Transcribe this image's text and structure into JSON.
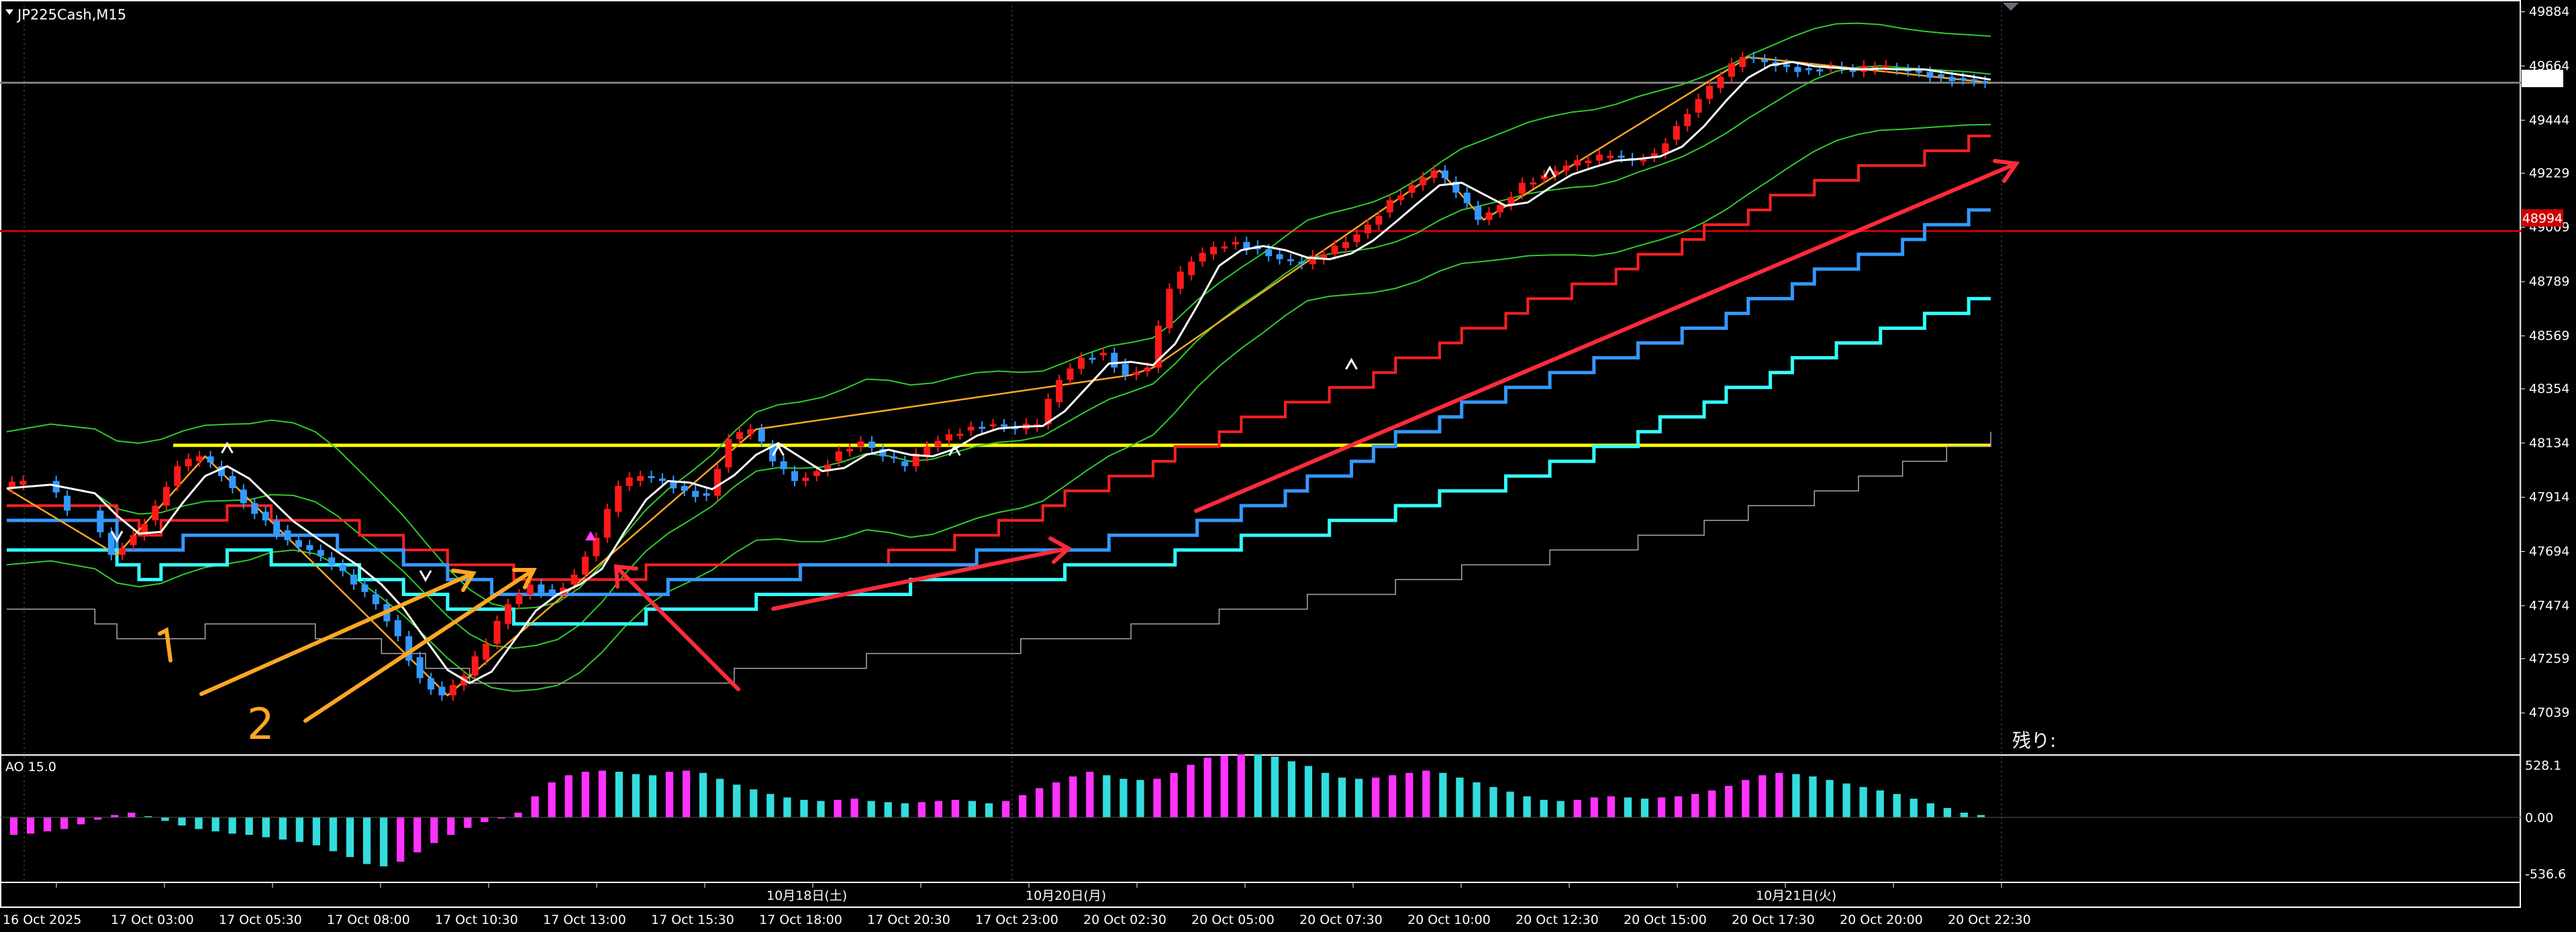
{
  "window": {
    "symbol_title": "JP225Cash,M15",
    "remaining_label": "残り:",
    "current_price": "49596",
    "level_tag": "48994"
  },
  "chart_data": {
    "type": "line",
    "title": "JP225Cash,M15",
    "price_axis": {
      "ticks": [
        49884,
        49664,
        49444,
        49229,
        49009,
        48789,
        48569,
        48354,
        48134,
        47914,
        47694,
        47474,
        47259,
        47039
      ],
      "ylim": [
        46890,
        49910
      ]
    },
    "time_axis": {
      "labels": [
        "16 Oct 2025",
        "17 Oct 03:00",
        "17 Oct 05:30",
        "17 Oct 08:00",
        "17 Oct 10:30",
        "17 Oct 13:00",
        "17 Oct 15:30",
        "17 Oct 18:00",
        "17 Oct 20:30",
        "17 Oct 23:00",
        "20 Oct 02:30",
        "20 Oct 05:00",
        "20 Oct 07:30",
        "20 Oct 10:00",
        "20 Oct 12:30",
        "20 Oct 15:00",
        "20 Oct 17:30",
        "20 Oct 20:00",
        "20 Oct 22:30"
      ],
      "day_separators": [
        "10月18日(土)",
        "10月20日(月)",
        "10月21日(火)"
      ]
    },
    "horizontal_levels": [
      {
        "value": 48125,
        "color": "#ffff00"
      },
      {
        "value": 48994,
        "color": "#cc0000"
      },
      {
        "value": 49596,
        "color": "#808080"
      }
    ],
    "price_series": [
      {
        "t": 0,
        "v": 47950
      },
      {
        "t": 4,
        "v": 47980
      },
      {
        "t": 8,
        "v": 47860
      },
      {
        "t": 10,
        "v": 47680
      },
      {
        "t": 12,
        "v": 47760
      },
      {
        "t": 14,
        "v": 47880
      },
      {
        "t": 16,
        "v": 48040
      },
      {
        "t": 18,
        "v": 48080
      },
      {
        "t": 20,
        "v": 48000
      },
      {
        "t": 22,
        "v": 47890
      },
      {
        "t": 24,
        "v": 47820
      },
      {
        "t": 26,
        "v": 47740
      },
      {
        "t": 28,
        "v": 47700
      },
      {
        "t": 30,
        "v": 47640
      },
      {
        "t": 32,
        "v": 47560
      },
      {
        "t": 34,
        "v": 47480
      },
      {
        "t": 36,
        "v": 47350
      },
      {
        "t": 38,
        "v": 47180
      },
      {
        "t": 40,
        "v": 47110
      },
      {
        "t": 42,
        "v": 47190
      },
      {
        "t": 44,
        "v": 47320
      },
      {
        "t": 46,
        "v": 47480
      },
      {
        "t": 48,
        "v": 47560
      },
      {
        "t": 50,
        "v": 47520
      },
      {
        "t": 52,
        "v": 47600
      },
      {
        "t": 54,
        "v": 47750
      },
      {
        "t": 56,
        "v": 47960
      },
      {
        "t": 58,
        "v": 48000
      },
      {
        "t": 60,
        "v": 47980
      },
      {
        "t": 62,
        "v": 47940
      },
      {
        "t": 64,
        "v": 47920
      },
      {
        "t": 66,
        "v": 48150
      },
      {
        "t": 68,
        "v": 48190
      },
      {
        "t": 70,
        "v": 48060
      },
      {
        "t": 72,
        "v": 47980
      },
      {
        "t": 74,
        "v": 48020
      },
      {
        "t": 76,
        "v": 48100
      },
      {
        "t": 78,
        "v": 48140
      },
      {
        "t": 80,
        "v": 48080
      },
      {
        "t": 82,
        "v": 48040
      },
      {
        "t": 84,
        "v": 48120
      },
      {
        "t": 86,
        "v": 48170
      },
      {
        "t": 88,
        "v": 48200
      },
      {
        "t": 90,
        "v": 48210
      },
      {
        "t": 92,
        "v": 48190
      },
      {
        "t": 94,
        "v": 48210
      },
      {
        "t": 96,
        "v": 48390
      },
      {
        "t": 98,
        "v": 48480
      },
      {
        "t": 100,
        "v": 48500
      },
      {
        "t": 102,
        "v": 48410
      },
      {
        "t": 104,
        "v": 48440
      },
      {
        "t": 106,
        "v": 48760
      },
      {
        "t": 108,
        "v": 48870
      },
      {
        "t": 110,
        "v": 48930
      },
      {
        "t": 112,
        "v": 48950
      },
      {
        "t": 114,
        "v": 48920
      },
      {
        "t": 116,
        "v": 48880
      },
      {
        "t": 118,
        "v": 48860
      },
      {
        "t": 120,
        "v": 48900
      },
      {
        "t": 122,
        "v": 48950
      },
      {
        "t": 124,
        "v": 49020
      },
      {
        "t": 126,
        "v": 49120
      },
      {
        "t": 128,
        "v": 49180
      },
      {
        "t": 130,
        "v": 49240
      },
      {
        "t": 132,
        "v": 49150
      },
      {
        "t": 134,
        "v": 49040
      },
      {
        "t": 136,
        "v": 49100
      },
      {
        "t": 138,
        "v": 49190
      },
      {
        "t": 140,
        "v": 49220
      },
      {
        "t": 142,
        "v": 49260
      },
      {
        "t": 144,
        "v": 49280
      },
      {
        "t": 146,
        "v": 49300
      },
      {
        "t": 148,
        "v": 49280
      },
      {
        "t": 150,
        "v": 49310
      },
      {
        "t": 152,
        "v": 49420
      },
      {
        "t": 154,
        "v": 49530
      },
      {
        "t": 156,
        "v": 49620
      },
      {
        "t": 158,
        "v": 49700
      },
      {
        "t": 160,
        "v": 49680
      },
      {
        "t": 162,
        "v": 49660
      },
      {
        "t": 164,
        "v": 49650
      },
      {
        "t": 166,
        "v": 49660
      },
      {
        "t": 168,
        "v": 49640
      },
      {
        "t": 170,
        "v": 49660
      },
      {
        "t": 172,
        "v": 49650
      },
      {
        "t": 174,
        "v": 49640
      },
      {
        "t": 176,
        "v": 49620
      },
      {
        "t": 178,
        "v": 49610
      },
      {
        "t": 180,
        "v": 49596
      }
    ],
    "awesome_oscillator": {
      "label": "AO 15.0",
      "ticks": [
        "528.1",
        "0.00",
        "-536.6"
      ],
      "ylim": [
        -620,
        620
      ],
      "values": [
        -150,
        -140,
        -120,
        -100,
        -60,
        -20,
        20,
        40,
        10,
        -30,
        -70,
        -100,
        -120,
        -140,
        -150,
        -170,
        -190,
        -210,
        -240,
        -290,
        -340,
        -400,
        -420,
        -380,
        -300,
        -220,
        -150,
        -90,
        -40,
        -10,
        40,
        180,
        300,
        360,
        390,
        400,
        390,
        370,
        360,
        390,
        400,
        380,
        330,
        280,
        240,
        200,
        170,
        150,
        140,
        150,
        160,
        140,
        130,
        120,
        130,
        140,
        150,
        140,
        120,
        140,
        190,
        250,
        300,
        350,
        390,
        360,
        330,
        320,
        330,
        380,
        450,
        510,
        530,
        540,
        540,
        520,
        480,
        440,
        380,
        340,
        330,
        340,
        360,
        380,
        400,
        380,
        340,
        300,
        260,
        220,
        180,
        150,
        140,
        150,
        170,
        180,
        170,
        160,
        170,
        180,
        200,
        230,
        270,
        320,
        360,
        380,
        370,
        350,
        320,
        290,
        260,
        230,
        200,
        160,
        120,
        80,
        40,
        20
      ]
    },
    "annotations": [
      "1",
      "2"
    ]
  }
}
